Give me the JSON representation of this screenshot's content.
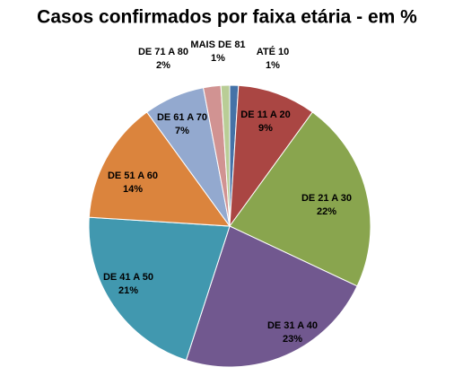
{
  "chart_data": {
    "type": "pie",
    "title": "Casos confirmados por faixa etária - em %",
    "categories": [
      "ATÉ 10",
      "DE 11 A 20",
      "DE 21 A 30",
      "DE 31 A 40",
      "DE 41 A 50",
      "DE 51 A 60",
      "DE 61 A 70",
      "DE 71 A 80",
      "MAIS DE 81"
    ],
    "values": [
      1,
      9,
      22,
      23,
      21,
      14,
      7,
      2,
      1
    ],
    "value_labels": [
      "1%",
      "9%",
      "22%",
      "23%",
      "21%",
      "14%",
      "7%",
      "2%",
      "1%"
    ],
    "colors": [
      "#4572a7",
      "#aa4643",
      "#89a54e",
      "#71588f",
      "#4198af",
      "#db843d",
      "#93a9cf",
      "#d19392",
      "#b9cd96"
    ]
  }
}
